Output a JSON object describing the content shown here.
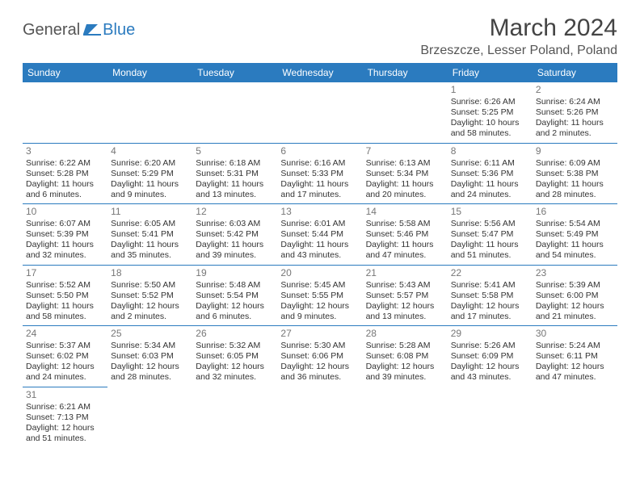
{
  "logo": {
    "part1": "General",
    "part2": "Blue"
  },
  "title": "March 2024",
  "location": "Brzeszcze, Lesser Poland, Poland",
  "colors": {
    "accent": "#2b7bbf",
    "text": "#333333",
    "muted": "#777777",
    "bg": "#ffffff"
  },
  "dayHeaders": [
    "Sunday",
    "Monday",
    "Tuesday",
    "Wednesday",
    "Thursday",
    "Friday",
    "Saturday"
  ],
  "weeks": [
    [
      null,
      null,
      null,
      null,
      null,
      {
        "n": "1",
        "sr": "Sunrise: 6:26 AM",
        "ss": "Sunset: 5:25 PM",
        "d1": "Daylight: 10 hours",
        "d2": "and 58 minutes."
      },
      {
        "n": "2",
        "sr": "Sunrise: 6:24 AM",
        "ss": "Sunset: 5:26 PM",
        "d1": "Daylight: 11 hours",
        "d2": "and 2 minutes."
      }
    ],
    [
      {
        "n": "3",
        "sr": "Sunrise: 6:22 AM",
        "ss": "Sunset: 5:28 PM",
        "d1": "Daylight: 11 hours",
        "d2": "and 6 minutes."
      },
      {
        "n": "4",
        "sr": "Sunrise: 6:20 AM",
        "ss": "Sunset: 5:29 PM",
        "d1": "Daylight: 11 hours",
        "d2": "and 9 minutes."
      },
      {
        "n": "5",
        "sr": "Sunrise: 6:18 AM",
        "ss": "Sunset: 5:31 PM",
        "d1": "Daylight: 11 hours",
        "d2": "and 13 minutes."
      },
      {
        "n": "6",
        "sr": "Sunrise: 6:16 AM",
        "ss": "Sunset: 5:33 PM",
        "d1": "Daylight: 11 hours",
        "d2": "and 17 minutes."
      },
      {
        "n": "7",
        "sr": "Sunrise: 6:13 AM",
        "ss": "Sunset: 5:34 PM",
        "d1": "Daylight: 11 hours",
        "d2": "and 20 minutes."
      },
      {
        "n": "8",
        "sr": "Sunrise: 6:11 AM",
        "ss": "Sunset: 5:36 PM",
        "d1": "Daylight: 11 hours",
        "d2": "and 24 minutes."
      },
      {
        "n": "9",
        "sr": "Sunrise: 6:09 AM",
        "ss": "Sunset: 5:38 PM",
        "d1": "Daylight: 11 hours",
        "d2": "and 28 minutes."
      }
    ],
    [
      {
        "n": "10",
        "sr": "Sunrise: 6:07 AM",
        "ss": "Sunset: 5:39 PM",
        "d1": "Daylight: 11 hours",
        "d2": "and 32 minutes."
      },
      {
        "n": "11",
        "sr": "Sunrise: 6:05 AM",
        "ss": "Sunset: 5:41 PM",
        "d1": "Daylight: 11 hours",
        "d2": "and 35 minutes."
      },
      {
        "n": "12",
        "sr": "Sunrise: 6:03 AM",
        "ss": "Sunset: 5:42 PM",
        "d1": "Daylight: 11 hours",
        "d2": "and 39 minutes."
      },
      {
        "n": "13",
        "sr": "Sunrise: 6:01 AM",
        "ss": "Sunset: 5:44 PM",
        "d1": "Daylight: 11 hours",
        "d2": "and 43 minutes."
      },
      {
        "n": "14",
        "sr": "Sunrise: 5:58 AM",
        "ss": "Sunset: 5:46 PM",
        "d1": "Daylight: 11 hours",
        "d2": "and 47 minutes."
      },
      {
        "n": "15",
        "sr": "Sunrise: 5:56 AM",
        "ss": "Sunset: 5:47 PM",
        "d1": "Daylight: 11 hours",
        "d2": "and 51 minutes."
      },
      {
        "n": "16",
        "sr": "Sunrise: 5:54 AM",
        "ss": "Sunset: 5:49 PM",
        "d1": "Daylight: 11 hours",
        "d2": "and 54 minutes."
      }
    ],
    [
      {
        "n": "17",
        "sr": "Sunrise: 5:52 AM",
        "ss": "Sunset: 5:50 PM",
        "d1": "Daylight: 11 hours",
        "d2": "and 58 minutes."
      },
      {
        "n": "18",
        "sr": "Sunrise: 5:50 AM",
        "ss": "Sunset: 5:52 PM",
        "d1": "Daylight: 12 hours",
        "d2": "and 2 minutes."
      },
      {
        "n": "19",
        "sr": "Sunrise: 5:48 AM",
        "ss": "Sunset: 5:54 PM",
        "d1": "Daylight: 12 hours",
        "d2": "and 6 minutes."
      },
      {
        "n": "20",
        "sr": "Sunrise: 5:45 AM",
        "ss": "Sunset: 5:55 PM",
        "d1": "Daylight: 12 hours",
        "d2": "and 9 minutes."
      },
      {
        "n": "21",
        "sr": "Sunrise: 5:43 AM",
        "ss": "Sunset: 5:57 PM",
        "d1": "Daylight: 12 hours",
        "d2": "and 13 minutes."
      },
      {
        "n": "22",
        "sr": "Sunrise: 5:41 AM",
        "ss": "Sunset: 5:58 PM",
        "d1": "Daylight: 12 hours",
        "d2": "and 17 minutes."
      },
      {
        "n": "23",
        "sr": "Sunrise: 5:39 AM",
        "ss": "Sunset: 6:00 PM",
        "d1": "Daylight: 12 hours",
        "d2": "and 21 minutes."
      }
    ],
    [
      {
        "n": "24",
        "sr": "Sunrise: 5:37 AM",
        "ss": "Sunset: 6:02 PM",
        "d1": "Daylight: 12 hours",
        "d2": "and 24 minutes."
      },
      {
        "n": "25",
        "sr": "Sunrise: 5:34 AM",
        "ss": "Sunset: 6:03 PM",
        "d1": "Daylight: 12 hours",
        "d2": "and 28 minutes."
      },
      {
        "n": "26",
        "sr": "Sunrise: 5:32 AM",
        "ss": "Sunset: 6:05 PM",
        "d1": "Daylight: 12 hours",
        "d2": "and 32 minutes."
      },
      {
        "n": "27",
        "sr": "Sunrise: 5:30 AM",
        "ss": "Sunset: 6:06 PM",
        "d1": "Daylight: 12 hours",
        "d2": "and 36 minutes."
      },
      {
        "n": "28",
        "sr": "Sunrise: 5:28 AM",
        "ss": "Sunset: 6:08 PM",
        "d1": "Daylight: 12 hours",
        "d2": "and 39 minutes."
      },
      {
        "n": "29",
        "sr": "Sunrise: 5:26 AM",
        "ss": "Sunset: 6:09 PM",
        "d1": "Daylight: 12 hours",
        "d2": "and 43 minutes."
      },
      {
        "n": "30",
        "sr": "Sunrise: 5:24 AM",
        "ss": "Sunset: 6:11 PM",
        "d1": "Daylight: 12 hours",
        "d2": "and 47 minutes."
      }
    ],
    [
      {
        "n": "31",
        "sr": "Sunrise: 6:21 AM",
        "ss": "Sunset: 7:13 PM",
        "d1": "Daylight: 12 hours",
        "d2": "and 51 minutes."
      },
      null,
      null,
      null,
      null,
      null,
      null
    ]
  ]
}
